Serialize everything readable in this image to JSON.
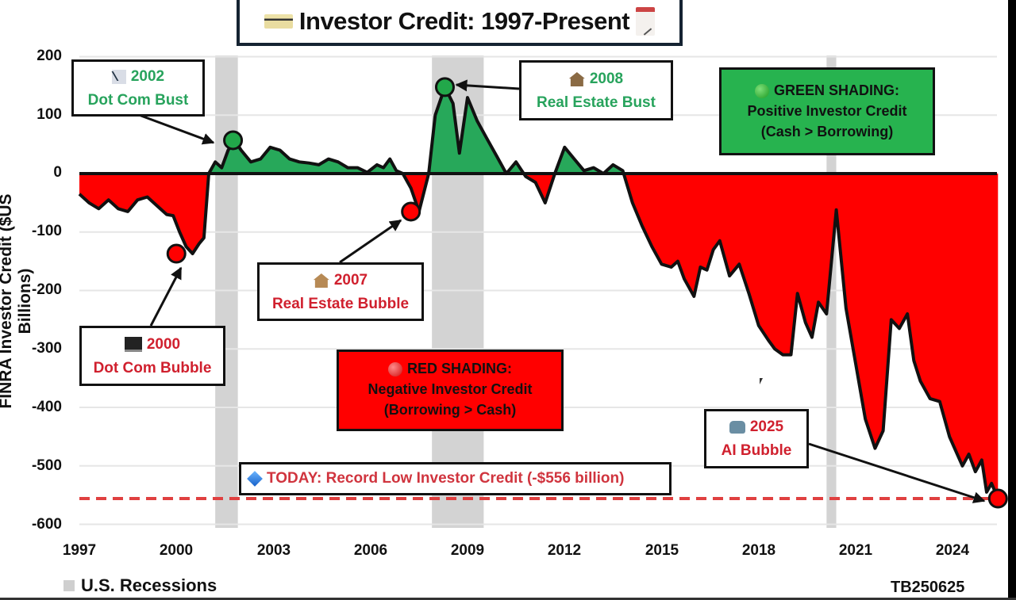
{
  "title": {
    "text": "Investor Credit: 1997-Present",
    "left_icon": "credit-card-icon",
    "right_icon": "calendar-icon"
  },
  "colors": {
    "positive_fill": "#27a85a",
    "negative_fill": "#ff0000",
    "line": "#111111",
    "recession": "#d3d3d3",
    "grid": "#e6e6e6",
    "record_line": "#e04040",
    "green_text": "#27a35c",
    "red_text": "#d0202e"
  },
  "annotations": [
    {
      "id": "dotcom-bust",
      "icon": "chart-decreasing-icon",
      "year": "2002",
      "label": "Dot Com Bust",
      "tone": "green"
    },
    {
      "id": "dotcom-bubble",
      "icon": "laptop-icon",
      "year": "2000",
      "label": "Dot Com Bubble",
      "tone": "red"
    },
    {
      "id": "re-bubble",
      "icon": "house-icon",
      "year": "2007",
      "label": "Real Estate Bubble",
      "tone": "red"
    },
    {
      "id": "re-bust",
      "icon": "derelict-house-icon",
      "year": "2008",
      "label": "Real Estate Bust",
      "tone": "green"
    },
    {
      "id": "ai-bubble",
      "icon": "robot-icon",
      "year": "2025",
      "label": "AI Bubble",
      "tone": "red"
    }
  ],
  "legend_boxes": {
    "green": {
      "icon": "green-circle-icon",
      "line1": "GREEN SHADING:",
      "line2": "Positive Investor Credit",
      "line3": "(Cash > Borrowing)"
    },
    "red": {
      "icon": "red-circle-icon",
      "line1": "RED SHADING:",
      "line2": "Negative Investor Credit",
      "line3": "(Borrowing > Cash)"
    }
  },
  "today": {
    "icon": "blue-diamond-icon",
    "text": "TODAY: Record Low Investor Credit (-$556 billion)",
    "value": -556
  },
  "footer": {
    "legend_label": "U.S. Recessions",
    "code": "TB250625"
  },
  "chart_data": {
    "type": "area",
    "title": "Investor Credit: 1997-Present",
    "xlabel": "",
    "ylabel": "FINRA Investor Credit ($US Billions)",
    "ylim": [
      -600,
      200
    ],
    "xlim": [
      1997,
      2025.5
    ],
    "yticks": [
      200,
      100,
      0,
      -100,
      -200,
      -300,
      -400,
      -500,
      -600
    ],
    "xticks": [
      1997,
      2000,
      2003,
      2006,
      2009,
      2012,
      2015,
      2018,
      2021,
      2024
    ],
    "grid": true,
    "legend_position": "bottom-left",
    "recessions": [
      [
        2001.2,
        2001.9
      ],
      [
        2007.9,
        2009.5
      ],
      [
        2020.1,
        2020.4
      ]
    ],
    "reference_line": {
      "y": -556,
      "style": "dashed",
      "label": "Record Low"
    },
    "markers": [
      {
        "x": 2000.0,
        "y": -137,
        "color": "red",
        "label": "2000 Dot Com Bubble"
      },
      {
        "x": 2001.75,
        "y": 57,
        "color": "green",
        "label": "2002 Dot Com Bust"
      },
      {
        "x": 2007.25,
        "y": -65,
        "color": "red",
        "label": "2007 Real Estate Bubble"
      },
      {
        "x": 2008.3,
        "y": 148,
        "color": "green",
        "label": "2008 Real Estate Bust"
      },
      {
        "x": 2025.4,
        "y": -556,
        "color": "red",
        "label": "2025 AI Bubble"
      }
    ],
    "series": [
      {
        "name": "FINRA Investor Credit",
        "x": [
          1997.0,
          1997.3,
          1997.6,
          1997.9,
          1998.2,
          1998.5,
          1998.8,
          1999.1,
          1999.4,
          1999.7,
          1999.9,
          2000.1,
          2000.3,
          2000.5,
          2000.7,
          2000.85,
          2001.0,
          2001.2,
          2001.4,
          2001.6,
          2001.8,
          2002.0,
          2002.3,
          2002.6,
          2002.9,
          2003.2,
          2003.5,
          2003.8,
          2004.1,
          2004.4,
          2004.7,
          2005.0,
          2005.3,
          2005.6,
          2005.9,
          2006.2,
          2006.4,
          2006.6,
          2006.8,
          2007.0,
          2007.25,
          2007.5,
          2007.8,
          2008.0,
          2008.3,
          2008.55,
          2008.75,
          2009.0,
          2009.3,
          2009.6,
          2009.9,
          2010.2,
          2010.5,
          2010.8,
          2011.1,
          2011.4,
          2011.7,
          2012.0,
          2012.3,
          2012.6,
          2012.9,
          2013.2,
          2013.5,
          2013.8,
          2014.1,
          2014.4,
          2014.7,
          2015.0,
          2015.3,
          2015.5,
          2015.7,
          2016.0,
          2016.2,
          2016.4,
          2016.6,
          2016.8,
          2017.1,
          2017.4,
          2017.7,
          2018.0,
          2018.3,
          2018.5,
          2018.75,
          2019.0,
          2019.2,
          2019.45,
          2019.65,
          2019.85,
          2020.1,
          2020.4,
          2020.7,
          2021.0,
          2021.3,
          2021.6,
          2021.85,
          2022.1,
          2022.35,
          2022.6,
          2022.8,
          2023.0,
          2023.3,
          2023.6,
          2023.9,
          2024.1,
          2024.3,
          2024.5,
          2024.7,
          2024.9,
          2025.05,
          2025.2,
          2025.4
        ],
        "y": [
          -35,
          -50,
          -60,
          -45,
          -60,
          -65,
          -45,
          -40,
          -55,
          -70,
          -72,
          -100,
          -125,
          -137,
          -120,
          -110,
          0,
          20,
          10,
          40,
          57,
          40,
          20,
          25,
          45,
          40,
          25,
          20,
          18,
          15,
          25,
          20,
          10,
          10,
          2,
          15,
          10,
          25,
          5,
          0,
          -25,
          -65,
          0,
          100,
          148,
          120,
          35,
          130,
          90,
          60,
          30,
          0,
          20,
          -5,
          -15,
          -50,
          0,
          45,
          25,
          5,
          10,
          0,
          15,
          5,
          -50,
          -90,
          -125,
          -155,
          -160,
          -150,
          -180,
          -210,
          -160,
          -165,
          -130,
          -115,
          -175,
          -155,
          -205,
          -260,
          -285,
          -300,
          -310,
          -310,
          -205,
          -255,
          -280,
          -220,
          -240,
          -62,
          -230,
          -325,
          -420,
          -470,
          -440,
          -250,
          -265,
          -240,
          -320,
          -355,
          -385,
          -390,
          -450,
          -475,
          -500,
          -480,
          -510,
          -490,
          -545,
          -530,
          -556
        ]
      }
    ]
  }
}
